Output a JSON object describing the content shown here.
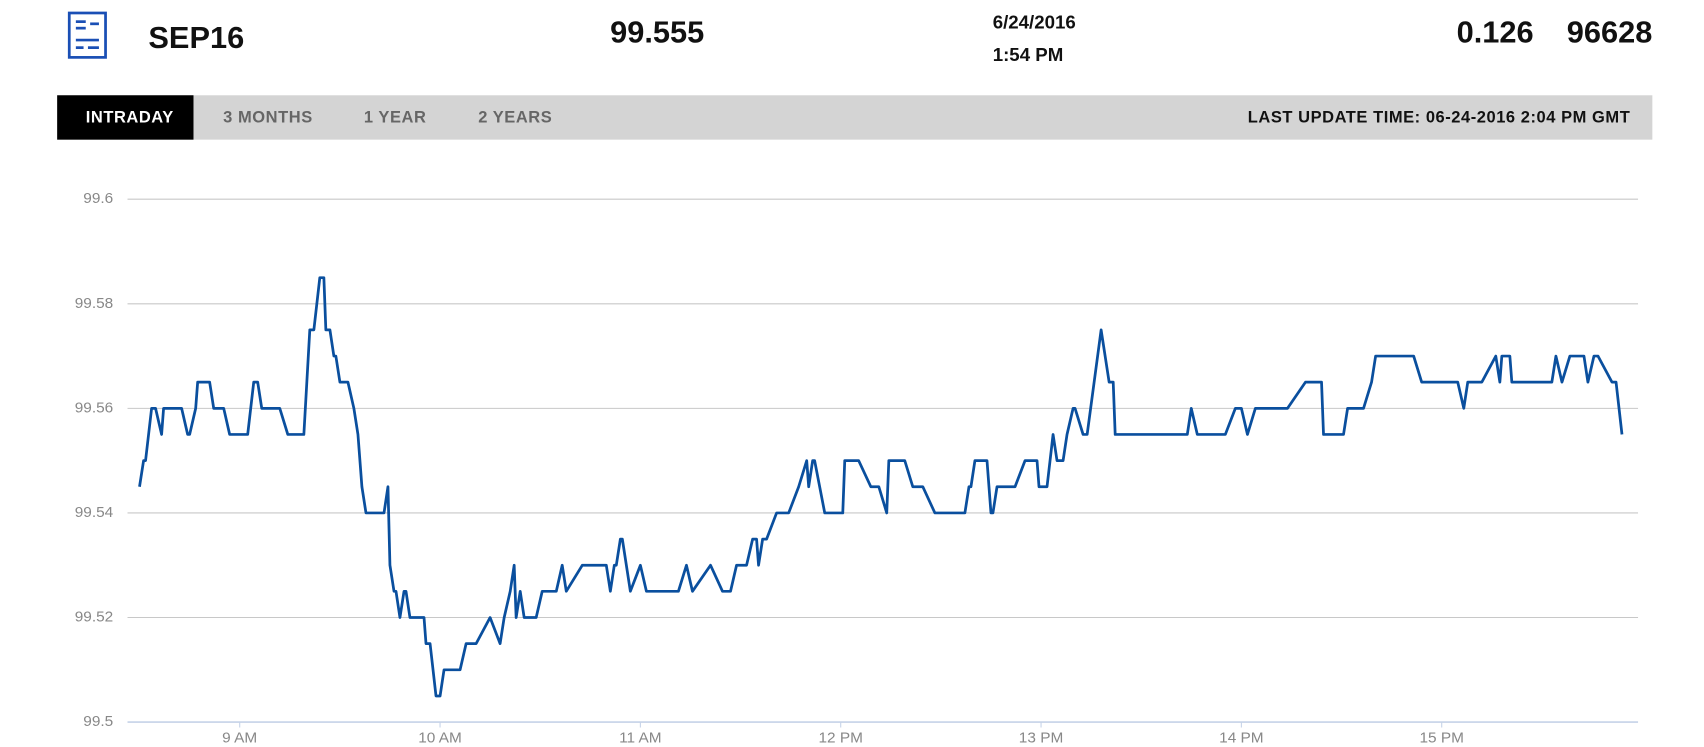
{
  "header": {
    "symbol": "SEP16",
    "price": "99.555",
    "date": "6/24/2016",
    "time": "1:54 PM",
    "change": "0.126",
    "volume": "96628"
  },
  "tabs": [
    "INTRADAY",
    "3 MONTHS",
    "1 YEAR",
    "2 YEARS"
  ],
  "last_update": "LAST UPDATE TIME: 06-24-2016 2:04 PM GMT",
  "chart_data": {
    "type": "line",
    "color": "#0a4f9e",
    "grid": true,
    "xlim": [
      8.44,
      15.98
    ],
    "ylim": [
      99.5,
      99.6
    ],
    "yticks": [
      99.5,
      99.52,
      99.54,
      99.56,
      99.58,
      99.6
    ],
    "xticks": [
      {
        "value": 9,
        "label": "9 AM"
      },
      {
        "value": 10,
        "label": "10 AM"
      },
      {
        "value": 11,
        "label": "11 AM"
      },
      {
        "value": 12,
        "label": "12 PM"
      },
      {
        "value": 13,
        "label": "13 PM"
      },
      {
        "value": 14,
        "label": "14 PM"
      },
      {
        "value": 15,
        "label": "15 PM"
      }
    ],
    "x": [
      8.5,
      8.52,
      8.53,
      8.56,
      8.58,
      8.61,
      8.62,
      8.71,
      8.74,
      8.75,
      8.78,
      8.79,
      8.85,
      8.87,
      8.92,
      8.95,
      9.04,
      9.07,
      9.09,
      9.11,
      9.2,
      9.24,
      9.32,
      9.35,
      9.37,
      9.4,
      9.42,
      9.43,
      9.45,
      9.47,
      9.48,
      9.5,
      9.54,
      9.57,
      9.59,
      9.61,
      9.63,
      9.72,
      9.74,
      9.75,
      9.77,
      9.78,
      9.8,
      9.82,
      9.83,
      9.85,
      9.92,
      9.93,
      9.95,
      9.98,
      10.0,
      10.02,
      10.1,
      10.13,
      10.18,
      10.25,
      10.3,
      10.32,
      10.35,
      10.37,
      10.38,
      10.4,
      10.42,
      10.48,
      10.51,
      10.58,
      10.61,
      10.63,
      10.71,
      10.83,
      10.85,
      10.87,
      10.88,
      10.9,
      10.91,
      10.95,
      11.0,
      11.03,
      11.19,
      11.23,
      11.26,
      11.35,
      11.41,
      11.45,
      11.48,
      11.53,
      11.56,
      11.58,
      11.59,
      11.61,
      11.63,
      11.68,
      11.74,
      11.79,
      11.83,
      11.84,
      11.86,
      11.87,
      11.92,
      12.01,
      12.02,
      12.09,
      12.15,
      12.19,
      12.23,
      12.24,
      12.32,
      12.36,
      12.41,
      12.47,
      12.62,
      12.64,
      12.65,
      12.67,
      12.73,
      12.75,
      12.76,
      12.78,
      12.87,
      12.92,
      12.98,
      12.99,
      13.03,
      13.06,
      13.08,
      13.11,
      13.13,
      13.16,
      13.17,
      13.21,
      13.23,
      13.3,
      13.34,
      13.36,
      13.37,
      13.73,
      13.75,
      13.78,
      13.92,
      13.97,
      14.0,
      14.03,
      14.07,
      14.23,
      14.32,
      14.4,
      14.41,
      14.51,
      14.53,
      14.61,
      14.65,
      14.67,
      14.86,
      14.9,
      15.08,
      15.11,
      15.13,
      15.2,
      15.27,
      15.29,
      15.3,
      15.34,
      15.35,
      15.55,
      15.57,
      15.6,
      15.64,
      15.71,
      15.73,
      15.76,
      15.78,
      15.85,
      15.87,
      15.9
    ],
    "values": [
      99.545,
      99.55,
      99.55,
      99.56,
      99.56,
      99.555,
      99.56,
      99.56,
      99.555,
      99.555,
      99.56,
      99.565,
      99.565,
      99.56,
      99.56,
      99.555,
      99.555,
      99.565,
      99.565,
      99.56,
      99.56,
      99.555,
      99.555,
      99.575,
      99.575,
      99.585,
      99.585,
      99.575,
      99.575,
      99.57,
      99.57,
      99.565,
      99.565,
      99.56,
      99.555,
      99.545,
      99.54,
      99.54,
      99.545,
      99.53,
      99.525,
      99.525,
      99.52,
      99.525,
      99.525,
      99.52,
      99.52,
      99.515,
      99.515,
      99.505,
      99.505,
      99.51,
      99.51,
      99.515,
      99.515,
      99.52,
      99.515,
      99.52,
      99.525,
      99.53,
      99.52,
      99.525,
      99.52,
      99.52,
      99.525,
      99.525,
      99.53,
      99.525,
      99.53,
      99.53,
      99.525,
      99.53,
      99.53,
      99.535,
      99.535,
      99.525,
      99.53,
      99.525,
      99.525,
      99.53,
      99.525,
      99.53,
      99.525,
      99.525,
      99.53,
      99.53,
      99.535,
      99.535,
      99.53,
      99.535,
      99.535,
      99.54,
      99.54,
      99.545,
      99.55,
      99.545,
      99.55,
      99.55,
      99.54,
      99.54,
      99.55,
      99.55,
      99.545,
      99.545,
      99.54,
      99.55,
      99.55,
      99.545,
      99.545,
      99.54,
      99.54,
      99.545,
      99.545,
      99.55,
      99.55,
      99.54,
      99.54,
      99.545,
      99.545,
      99.55,
      99.55,
      99.545,
      99.545,
      99.555,
      99.55,
      99.55,
      99.555,
      99.56,
      99.56,
      99.555,
      99.555,
      99.575,
      99.565,
      99.565,
      99.555,
      99.555,
      99.56,
      99.555,
      99.555,
      99.56,
      99.56,
      99.555,
      99.56,
      99.56,
      99.565,
      99.565,
      99.555,
      99.555,
      99.56,
      99.56,
      99.565,
      99.57,
      99.57,
      99.565,
      99.565,
      99.56,
      99.565,
      99.565,
      99.57,
      99.565,
      99.57,
      99.57,
      99.565,
      99.565,
      99.57,
      99.565,
      99.57,
      99.57,
      99.565,
      99.57,
      99.57,
      99.565,
      99.565,
      99.555
    ]
  }
}
